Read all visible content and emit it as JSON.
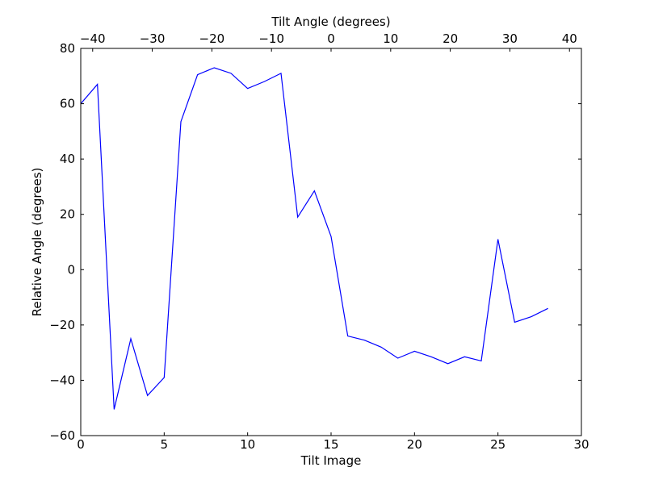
{
  "chart_data": {
    "type": "line",
    "xlabel": "Tilt Image",
    "ylabel": "Relative Angle (degrees)",
    "x2label": "Tilt Angle (degrees)",
    "xlim": [
      0,
      30
    ],
    "ylim": [
      -60,
      80
    ],
    "x2lim": [
      -42,
      42
    ],
    "xticks": [
      0,
      5,
      10,
      15,
      20,
      25,
      30
    ],
    "yticks": [
      -60,
      -40,
      -20,
      0,
      20,
      40,
      60,
      80
    ],
    "x2ticks": [
      -40,
      -30,
      -20,
      -10,
      0,
      10,
      20,
      30,
      40
    ],
    "grid": false,
    "series": [
      {
        "color": "#0000ff",
        "x": [
          0,
          1,
          2,
          3,
          4,
          5,
          6,
          7,
          8,
          9,
          10,
          11,
          12,
          13,
          14,
          15,
          16,
          17,
          18,
          19,
          20,
          21,
          22,
          23,
          24,
          25,
          26,
          27,
          28
        ],
        "y": [
          60,
          67,
          -50.5,
          -25,
          -45.5,
          -39,
          53.5,
          70.5,
          73,
          71,
          65.5,
          68,
          71,
          19,
          28.5,
          12,
          -24,
          -25.5,
          -28,
          -32,
          -29.5,
          -31.5,
          -34,
          -31.5,
          -33,
          11,
          -19,
          -17,
          -14
        ]
      }
    ]
  }
}
